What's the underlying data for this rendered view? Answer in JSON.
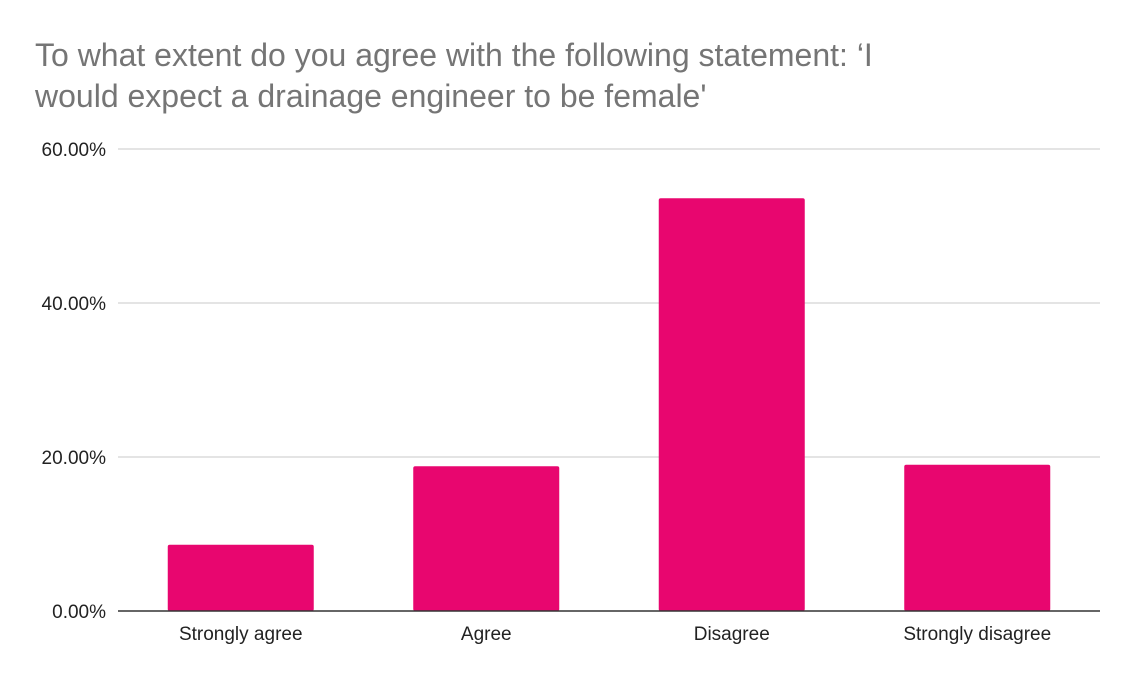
{
  "chart_data": {
    "type": "bar",
    "title": "To what extent do you agree with the following statement: ‘I would expect a drainage engineer to be female'",
    "title_lines": [
      "To what extent do you agree with the following statement: ‘I",
      "would expect a drainage engineer to be female'"
    ],
    "xlabel": "",
    "ylabel": "",
    "categories": [
      "Strongly agree",
      "Agree",
      "Disagree",
      "Strongly disagree"
    ],
    "values": [
      8.6,
      18.8,
      53.6,
      19.0
    ],
    "ylim": [
      0,
      60
    ],
    "yticks": [
      0,
      20,
      40,
      60
    ],
    "ytick_labels": [
      "0.00%",
      "20.00%",
      "40.00%",
      "60.00%"
    ],
    "grid": true,
    "legend": "none",
    "bar_color": "#E8066F",
    "grid_color": "#C8C8C8",
    "axis_color": "#333333"
  }
}
